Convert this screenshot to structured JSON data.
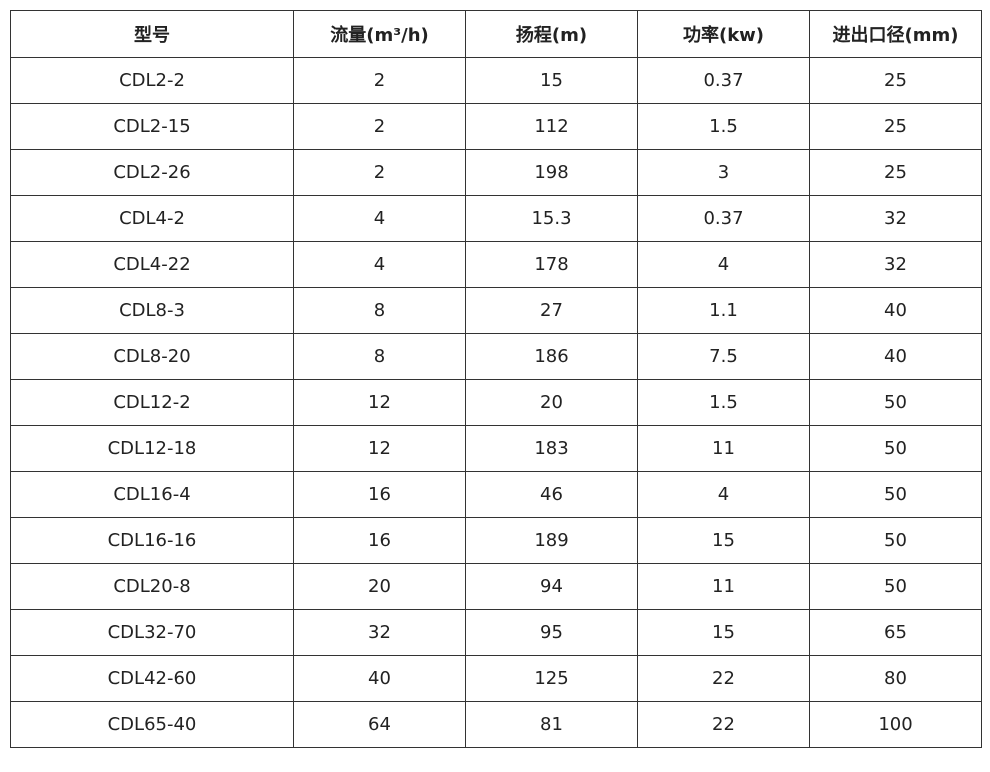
{
  "table": {
    "headers": [
      "型号",
      "流量(m³/h)",
      "扬程(m)",
      "功率(kw)",
      "进出口径(mm)"
    ],
    "rows": [
      [
        "CDL2-2",
        "2",
        "15",
        "0.37",
        "25"
      ],
      [
        "CDL2-15",
        "2",
        "112",
        "1.5",
        "25"
      ],
      [
        "CDL2-26",
        "2",
        "198",
        "3",
        "25"
      ],
      [
        "CDL4-2",
        "4",
        "15.3",
        "0.37",
        "32"
      ],
      [
        "CDL4-22",
        "4",
        "178",
        "4",
        "32"
      ],
      [
        "CDL8-3",
        "8",
        "27",
        "1.1",
        "40"
      ],
      [
        "CDL8-20",
        "8",
        "186",
        "7.5",
        "40"
      ],
      [
        "CDL12-2",
        "12",
        "20",
        "1.5",
        "50"
      ],
      [
        "CDL12-18",
        "12",
        "183",
        "11",
        "50"
      ],
      [
        "CDL16-4",
        "16",
        "46",
        "4",
        "50"
      ],
      [
        "CDL16-16",
        "16",
        "189",
        "15",
        "50"
      ],
      [
        "CDL20-8",
        "20",
        "94",
        "11",
        "50"
      ],
      [
        "CDL32-70",
        "32",
        "95",
        "15",
        "65"
      ],
      [
        "CDL42-60",
        "40",
        "125",
        "22",
        "80"
      ],
      [
        "CDL65-40",
        "64",
        "81",
        "22",
        "100"
      ]
    ]
  }
}
